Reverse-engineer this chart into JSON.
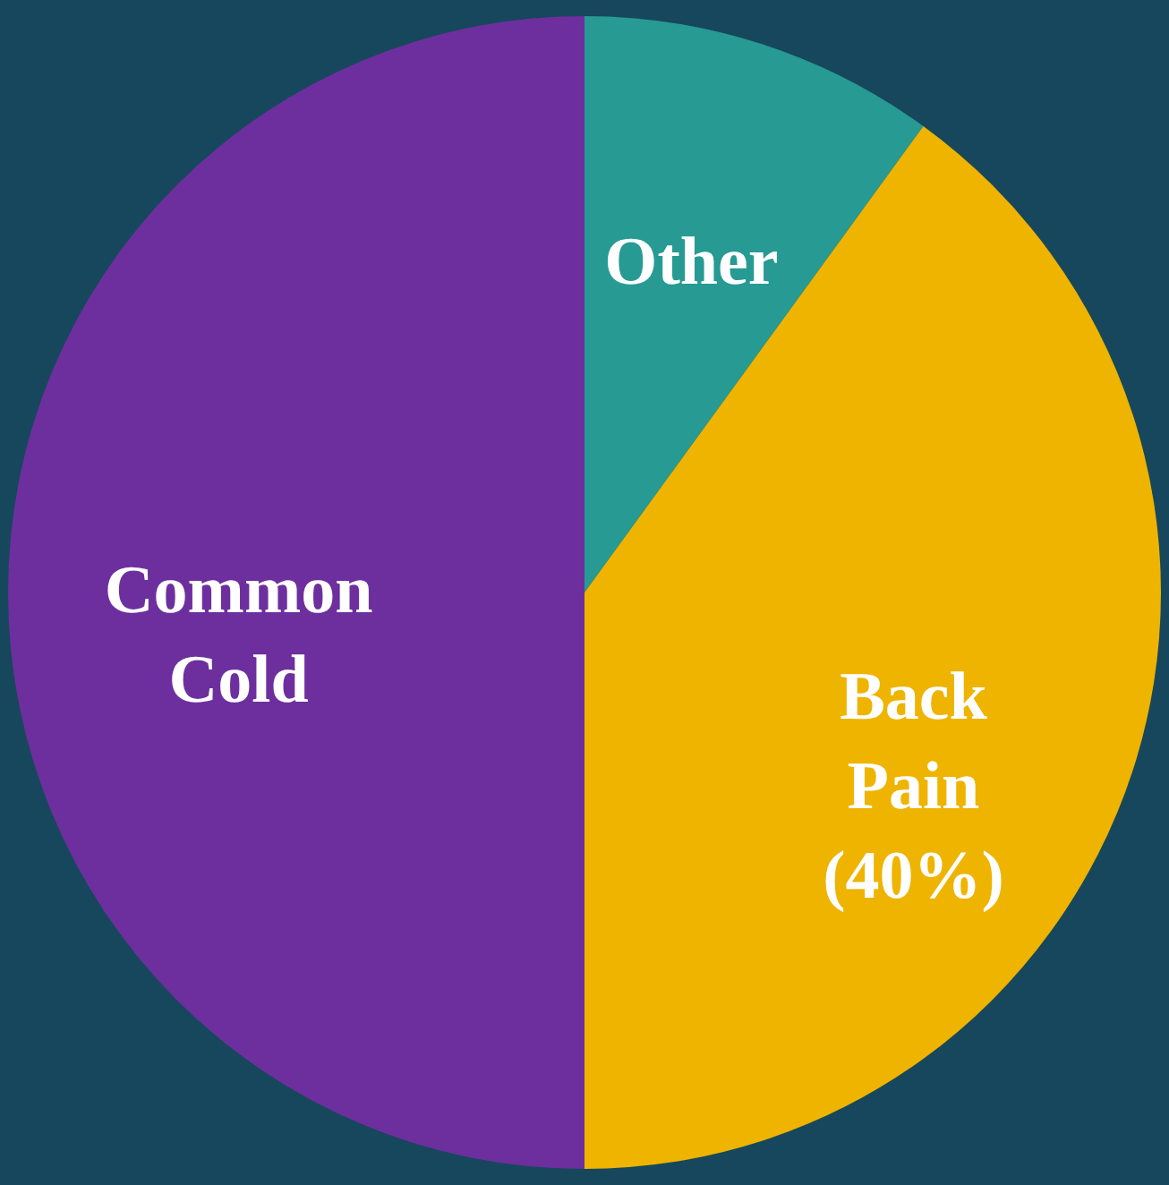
{
  "chart_data": {
    "type": "pie",
    "categories": [
      "Other",
      "Back Pain",
      "Common Cold"
    ],
    "values": [
      10,
      40,
      50
    ],
    "colors": [
      "#279a93",
      "#eeb400",
      "#6d2f9e"
    ],
    "value_labels": [
      null,
      "(40%)",
      null
    ]
  }
}
